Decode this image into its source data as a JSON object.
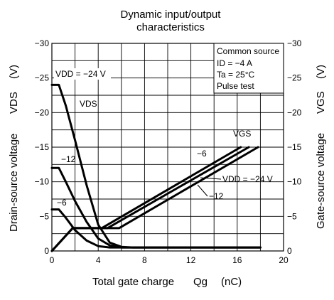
{
  "chart_data": {
    "type": "line",
    "title_line1": "Dynamic input/output",
    "title_line2": "characteristics",
    "xlabel": "Total gate charge",
    "xlabel_symbol": "Qg",
    "xlabel_unit": "(nC)",
    "ylabel_left": "Drain-source voltage",
    "ylabel_left_symbol": "VDS",
    "ylabel_left_unit": "(V)",
    "ylabel_right": "Gate-source voltage",
    "ylabel_right_symbol": "VGS",
    "ylabel_right_unit": "(V)",
    "xlim": [
      0,
      20
    ],
    "ylim_left": [
      0,
      -30
    ],
    "ylim_right": [
      0,
      -30
    ],
    "x_ticks": [
      "0",
      "4",
      "8",
      "12",
      "16",
      "20"
    ],
    "y_ticks_left": [
      "0",
      "−5",
      "−10",
      "−15",
      "−20",
      "−25",
      "−30"
    ],
    "y_ticks_right": [
      "0",
      "−5",
      "−10",
      "−15",
      "−20",
      "−25",
      "−30"
    ],
    "grid": true,
    "conditions": {
      "line1": "Common source",
      "line2": "ID = −4 A",
      "line3": "Ta = 25°C",
      "line4": "Pulse test"
    },
    "labels": {
      "vdd_top": "VDD = −24 V",
      "vds": "VDS",
      "vgs": "VGS",
      "vds_m12": "−12",
      "vds_m6": "−6",
      "vgs_m6": "−6",
      "vgs_vdd": "VDD = −24 V",
      "vgs_m12": "−12"
    },
    "series": [
      {
        "name": "VDS (VDD = −24 V)",
        "axis": "left",
        "x": [
          0,
          0.6,
          1.2,
          2,
          3,
          4,
          5,
          6,
          7,
          18
        ],
        "y": [
          -24,
          -24,
          -21,
          -16,
          -9.5,
          -3.8,
          -1.2,
          -0.6,
          -0.5,
          -0.5
        ]
      },
      {
        "name": "VDS (−12 V)",
        "axis": "left",
        "x": [
          0,
          0.6,
          1.2,
          2,
          3,
          4,
          5,
          6,
          18
        ],
        "y": [
          -12,
          -12,
          -10,
          -7.2,
          -4.2,
          -1.8,
          -0.8,
          -0.5,
          -0.5
        ]
      },
      {
        "name": "VDS (−6 V)",
        "axis": "left",
        "x": [
          0,
          0.6,
          1.2,
          2,
          3,
          4,
          5,
          18
        ],
        "y": [
          -6,
          -6,
          -4.8,
          -3,
          -1.5,
          -0.7,
          -0.5,
          -0.5
        ]
      },
      {
        "name": "VGS (−6 V)",
        "axis": "right",
        "x": [
          0,
          1.8,
          4.3,
          16.3
        ],
        "y": [
          0,
          -3.3,
          -3.3,
          -15
        ]
      },
      {
        "name": "VGS (−12 V)",
        "axis": "right",
        "x": [
          0,
          1.8,
          4.8,
          17
        ],
        "y": [
          0,
          -3.3,
          -3.3,
          -15
        ]
      },
      {
        "name": "VGS (VDD = −24 V)",
        "axis": "right",
        "x": [
          0,
          1.8,
          5.8,
          17.8
        ],
        "y": [
          0,
          -3.3,
          -3.3,
          -15
        ]
      }
    ]
  }
}
